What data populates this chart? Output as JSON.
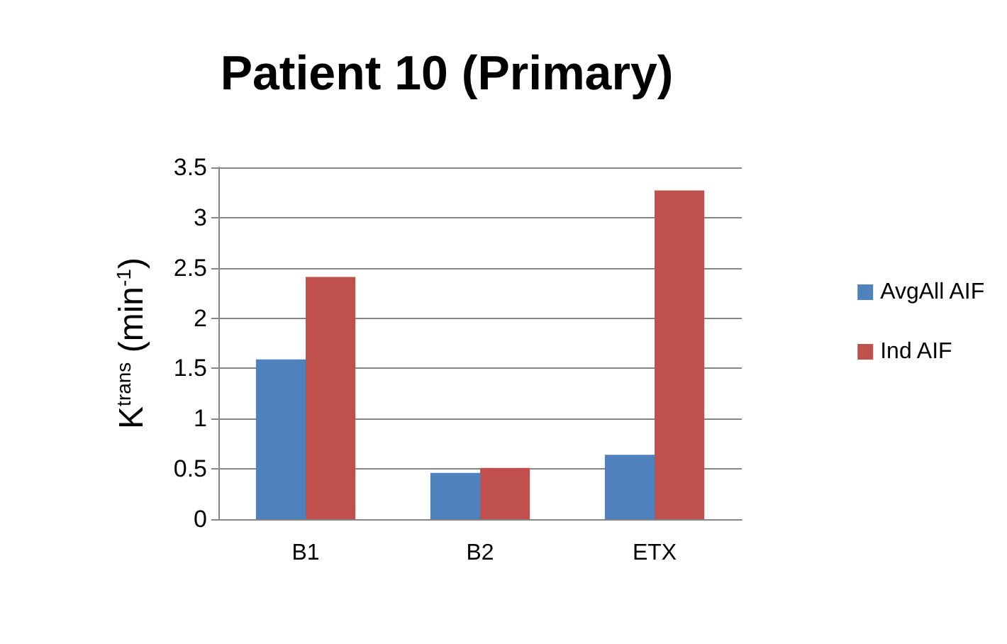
{
  "chart_data": {
    "type": "bar",
    "title": "Patient 10 (Primary)",
    "ylabel": "K$^{trans}$ (min$^{-1}$)",
    "categories": [
      "B1",
      "B2",
      "ETX"
    ],
    "series": [
      {
        "name": "AvgAll AIF",
        "color": "#4f81bd",
        "values": [
          1.59,
          0.46,
          0.64
        ]
      },
      {
        "name": "Ind AIF",
        "color": "#c0504d",
        "values": [
          2.41,
          0.51,
          3.27
        ]
      }
    ],
    "ylim": [
      0,
      3.5
    ],
    "yticks": [
      0,
      0.5,
      1,
      1.5,
      2,
      2.5,
      3,
      3.5
    ],
    "grid": "y",
    "legend": "right"
  }
}
